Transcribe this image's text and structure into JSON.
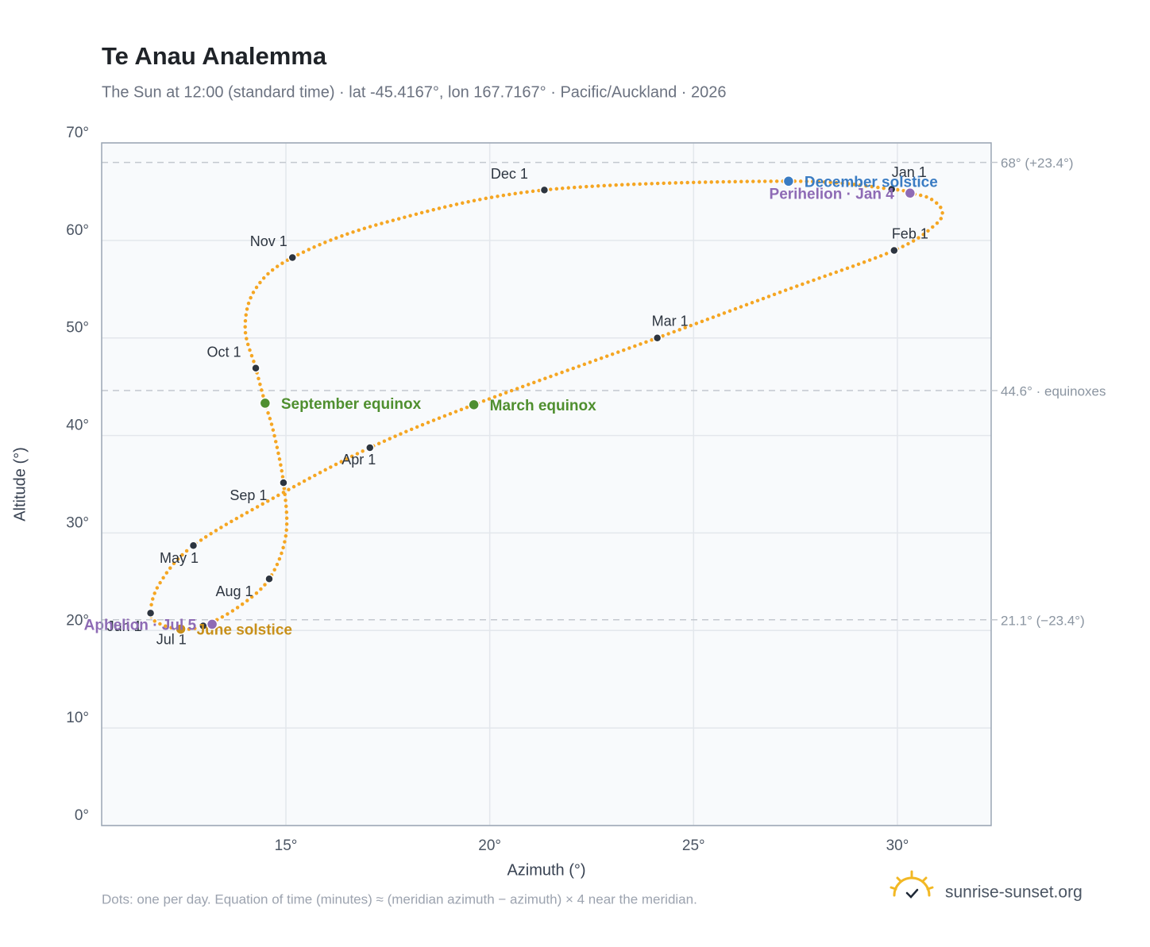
{
  "chart_data": {
    "type": "line",
    "title": "Te Anau Analemma",
    "subtitle": "The Sun at 12:00 (standard time) · lat -45.4167°, lon 167.7167° · Pacific/Auckland · 2026",
    "x_label": "Azimuth (°)",
    "y_label": "Altitude (°)",
    "xlim": [
      10.48,
      32.3
    ],
    "ylim": [
      0,
      70
    ],
    "xticks": [
      {
        "value": 15,
        "label": "15°"
      },
      {
        "value": 20,
        "label": "20°"
      },
      {
        "value": 25,
        "label": "25°"
      },
      {
        "value": 30,
        "label": "30°"
      }
    ],
    "yticks": [
      {
        "value": 0,
        "label": "0°"
      },
      {
        "value": 10,
        "label": "10°"
      },
      {
        "value": 20,
        "label": "20°"
      },
      {
        "value": 30,
        "label": "30°"
      },
      {
        "value": 40,
        "label": "40°"
      },
      {
        "value": 50,
        "label": "50°"
      },
      {
        "value": 60,
        "label": "60°"
      },
      {
        "value": 70,
        "label": "70°"
      }
    ],
    "grid": true,
    "series": [
      {
        "color": "#f5a623",
        "x": [
          29.86,
          30.31,
          30.8,
          31.1,
          30.9,
          29.92,
          27.2,
          24.11,
          19.61,
          17.06,
          14.7,
          12.73,
          11.9,
          11.68,
          11.9,
          12.42,
          12.97,
          13.83,
          14.59,
          15.0,
          14.94,
          14.7,
          14.49,
          14.26,
          14.0,
          14.25,
          15.16,
          17.4,
          21.34,
          27.33
        ],
        "values": [
          65.25,
          64.85,
          64.3,
          63.0,
          61.5,
          58.97,
          54.8,
          50.0,
          43.15,
          38.74,
          33.6,
          28.71,
          24.8,
          21.78,
          20.7,
          20.15,
          20.47,
          22.4,
          25.29,
          29.8,
          35.15,
          40.3,
          43.31,
          46.9,
          51.0,
          55.0,
          58.24,
          61.8,
          65.17,
          66.07
        ]
      }
    ],
    "markers": [
      {
        "label": "Jan 1",
        "x": 29.86,
        "y": 65.25
      },
      {
        "label": "Feb 1",
        "x": 29.92,
        "y": 58.97
      },
      {
        "label": "Mar 1",
        "x": 24.11,
        "y": 50.0
      },
      {
        "label": "Apr 1",
        "x": 17.06,
        "y": 38.74
      },
      {
        "label": "May 1",
        "x": 12.73,
        "y": 28.71
      },
      {
        "label": "Jun 1",
        "x": 11.68,
        "y": 21.78
      },
      {
        "label": "Jul 1",
        "x": 12.97,
        "y": 20.47
      },
      {
        "label": "Aug 1",
        "x": 14.59,
        "y": 25.29
      },
      {
        "label": "Sep 1",
        "x": 14.94,
        "y": 35.15
      },
      {
        "label": "Oct 1",
        "x": 14.26,
        "y": 46.9
      },
      {
        "label": "Nov 1",
        "x": 15.16,
        "y": 58.24
      },
      {
        "label": "Dec 1",
        "x": 21.34,
        "y": 65.17
      }
    ],
    "events": [
      {
        "label": "December solstice",
        "x": 27.33,
        "y": 66.07,
        "color": "#3a7cc3"
      },
      {
        "label": "Perihelion · Jan 4",
        "x": 30.31,
        "y": 64.85,
        "color": "#8e6bb5"
      },
      {
        "label": "March equinox",
        "x": 19.61,
        "y": 43.15,
        "color": "#4f8f2f"
      },
      {
        "label": "September equinox",
        "x": 14.49,
        "y": 43.31,
        "color": "#4f8f2f"
      },
      {
        "label": "June solstice",
        "x": 12.42,
        "y": 20.15,
        "color": "#c8901a"
      },
      {
        "label": "Aphelion · Jul 5",
        "x": 13.19,
        "y": 20.64,
        "color": "#8e6bb5"
      }
    ],
    "reference_lines": [
      {
        "value": 68,
        "label": "68° (+23.4°)"
      },
      {
        "value": 44.6,
        "label": "44.6° · equinoxes"
      },
      {
        "value": 21.1,
        "label": "21.1° (−23.4°)"
      }
    ],
    "note": "Dots: one per day. Equation of time (minutes) ≈ (meridian azimuth − azimuth) × 4 near the meridian.",
    "brand": "sunrise-sunset.org"
  }
}
